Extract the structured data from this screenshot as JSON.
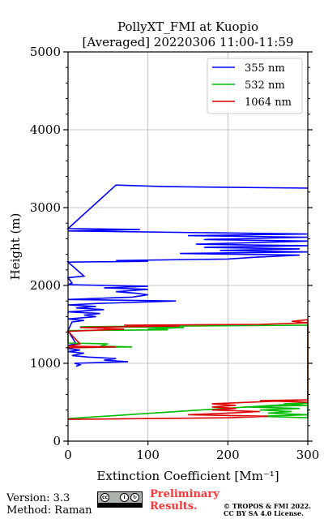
{
  "chart_data": {
    "type": "line",
    "title": "PollyXT_FMI at Kuopio",
    "subtitle": "[Averaged] 20220306 11:00-11:59",
    "xlabel": "Extinction Coefficient [Mm⁻¹]",
    "ylabel": "Height (m)",
    "xlim": [
      0,
      300
    ],
    "ylim": [
      0,
      5000
    ],
    "xticks": [
      0,
      100,
      200,
      300
    ],
    "yticks": [
      0,
      1000,
      2000,
      3000,
      4000,
      5000
    ],
    "grid": true,
    "legend_position": "top-right",
    "series": [
      {
        "name": "355 nm",
        "color": "#0000ff",
        "points": [
          [
            10,
            960
          ],
          [
            15,
            980
          ],
          [
            8,
            1000
          ],
          [
            75,
            1020
          ],
          [
            45,
            1040
          ],
          [
            60,
            1060
          ],
          [
            25,
            1080
          ],
          [
            5,
            1100
          ],
          [
            20,
            1130
          ],
          [
            0,
            1150
          ],
          [
            15,
            1170
          ],
          [
            0,
            1190
          ],
          [
            10,
            1210
          ],
          [
            0,
            1230
          ],
          [
            10,
            1250
          ],
          [
            0,
            1420
          ],
          [
            5,
            1530
          ],
          [
            20,
            1550
          ],
          [
            0,
            1570
          ],
          [
            35,
            1600
          ],
          [
            20,
            1620
          ],
          [
            40,
            1640
          ],
          [
            0,
            1660
          ],
          [
            45,
            1690
          ],
          [
            10,
            1710
          ],
          [
            35,
            1730
          ],
          [
            0,
            1750
          ],
          [
            40,
            1770
          ],
          [
            135,
            1800
          ],
          [
            0,
            1820
          ],
          [
            80,
            1850
          ],
          [
            100,
            1880
          ],
          [
            85,
            1900
          ],
          [
            60,
            1920
          ],
          [
            100,
            1950
          ],
          [
            45,
            1970
          ],
          [
            100,
            1990
          ],
          [
            0,
            2010
          ],
          [
            5,
            2030
          ],
          [
            0,
            2100
          ],
          [
            20,
            2120
          ],
          [
            0,
            2300
          ],
          [
            100,
            2310
          ],
          [
            60,
            2320
          ],
          [
            200,
            2340
          ],
          [
            230,
            2360
          ],
          [
            290,
            2390
          ],
          [
            140,
            2410
          ],
          [
            300,
            2430
          ],
          [
            190,
            2450
          ],
          [
            290,
            2470
          ],
          [
            170,
            2490
          ],
          [
            300,
            2510
          ],
          [
            160,
            2530
          ],
          [
            300,
            2570
          ],
          [
            170,
            2590
          ],
          [
            300,
            2620
          ],
          [
            150,
            2640
          ],
          [
            300,
            2660
          ],
          [
            0,
            2700
          ],
          [
            90,
            2720
          ],
          [
            0,
            2730
          ],
          [
            60,
            3290
          ],
          [
            120,
            3270
          ],
          [
            300,
            3250
          ]
        ]
      },
      {
        "name": "532 nm",
        "color": "#00bb00",
        "points": [
          [
            0,
            1180
          ],
          [
            0,
            1200
          ],
          [
            80,
            1210
          ],
          [
            40,
            1220
          ],
          [
            50,
            1250
          ],
          [
            0,
            1260
          ],
          [
            0,
            1420
          ],
          [
            125,
            1430
          ],
          [
            100,
            1440
          ],
          [
            145,
            1460
          ],
          [
            15,
            1470
          ],
          [
            300,
            1490
          ],
          [
            300,
            300
          ],
          [
            240,
            320
          ],
          [
            300,
            340
          ],
          [
            250,
            360
          ],
          [
            280,
            380
          ],
          [
            240,
            400
          ],
          [
            290,
            420
          ],
          [
            220,
            440
          ],
          [
            300,
            460
          ],
          [
            270,
            480
          ],
          [
            300,
            490
          ],
          [
            0,
            290
          ]
        ]
      },
      {
        "name": "1064 nm",
        "color": "#dd0000",
        "points": [
          [
            0,
            1200
          ],
          [
            60,
            1210
          ],
          [
            0,
            1220
          ],
          [
            15,
            1250
          ],
          [
            0,
            1410
          ],
          [
            70,
            1440
          ],
          [
            15,
            1460
          ],
          [
            140,
            1480
          ],
          [
            70,
            1490
          ],
          [
            240,
            1500
          ],
          [
            300,
            1520
          ],
          [
            280,
            1540
          ],
          [
            300,
            1560
          ],
          [
            300,
            500
          ],
          [
            240,
            520
          ],
          [
            300,
            530
          ],
          [
            180,
            480
          ],
          [
            210,
            460
          ],
          [
            180,
            440
          ],
          [
            210,
            420
          ],
          [
            180,
            400
          ],
          [
            240,
            380
          ],
          [
            200,
            360
          ],
          [
            150,
            340
          ],
          [
            250,
            320
          ],
          [
            200,
            300
          ],
          [
            0,
            280
          ]
        ]
      }
    ]
  },
  "footer": {
    "version": "Version: 3.3",
    "method": "Method: Raman",
    "preliminary_line1": "Preliminary",
    "preliminary_line2": "Results.",
    "copyright_line1": "© TROPOS & FMI 2022.",
    "copyright_line2": "CC BY SA 4.0 License."
  }
}
